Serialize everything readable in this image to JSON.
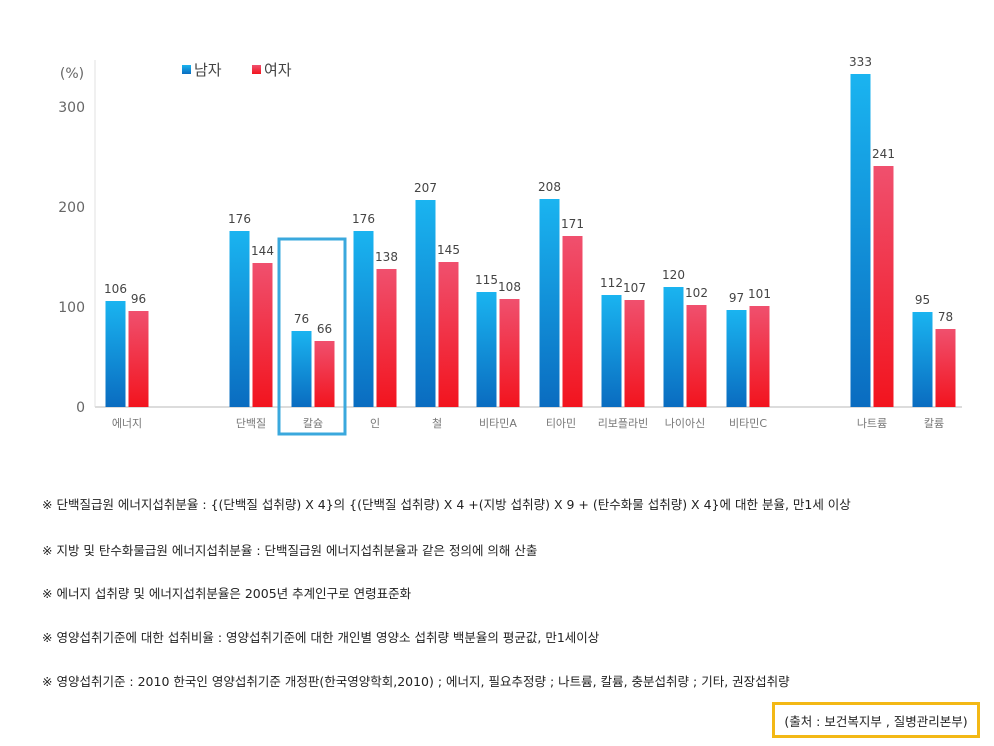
{
  "chart_data": {
    "type": "bar",
    "y_unit": "(%)",
    "yticks": [
      0,
      100,
      200,
      300
    ],
    "ylim": [
      0,
      340
    ],
    "legend_position": "top-left",
    "categories": [
      "에너지",
      "단백질",
      "칼슘",
      "인",
      "철",
      "비타민A",
      "티아민",
      "리보플라빈",
      "나이아신",
      "비타민C",
      "나트륨",
      "칼륨"
    ],
    "series": [
      {
        "name": "남자",
        "color": "#0a8fd9",
        "values": [
          106,
          176,
          76,
          176,
          207,
          115,
          208,
          112,
          120,
          97,
          333,
          95
        ]
      },
      {
        "name": "여자",
        "color": "#e8284a",
        "values": [
          96,
          144,
          66,
          138,
          145,
          108,
          171,
          107,
          102,
          101,
          241,
          78
        ]
      }
    ],
    "highlighted_category": "칼슘",
    "highlight_color": "#3aa8dd",
    "grid": false
  },
  "notes": [
    "※ 단백질급원 에너지섭취분율 : {(단백질 섭취량) X 4}의 {(단백질 섭취량) X 4 +(지방 섭취량) X 9 + (탄수화물 섭취량) X 4}에 대한 분율, 만1세 이상",
    "※ 지방 및 탄수화물급원 에너지섭취분율 : 단백질급원 에너지섭취분율과 같은 정의에 의해 산출",
    "※ 에너지 섭취량 및 에너지섭취분율은 2005년 추계인구로 연령표준화",
    "※ 영양섭취기준에 대한 섭취비율 : 영양섭취기준에 대한 개인별 영양소 섭취량 백분율의 평균값, 만1세이상",
    "※ 영양섭취기준 : 2010 한국인 영양섭취기준 개정판(한국영양학회,2010) ; 에너지, 필요추정량 ; 나트륨, 칼륨, 충분섭취량 ; 기타, 권장섭취량"
  ],
  "source": "(출처 : 보건복지부 , 질병관리본부)",
  "source_box_color": "#f3b815"
}
